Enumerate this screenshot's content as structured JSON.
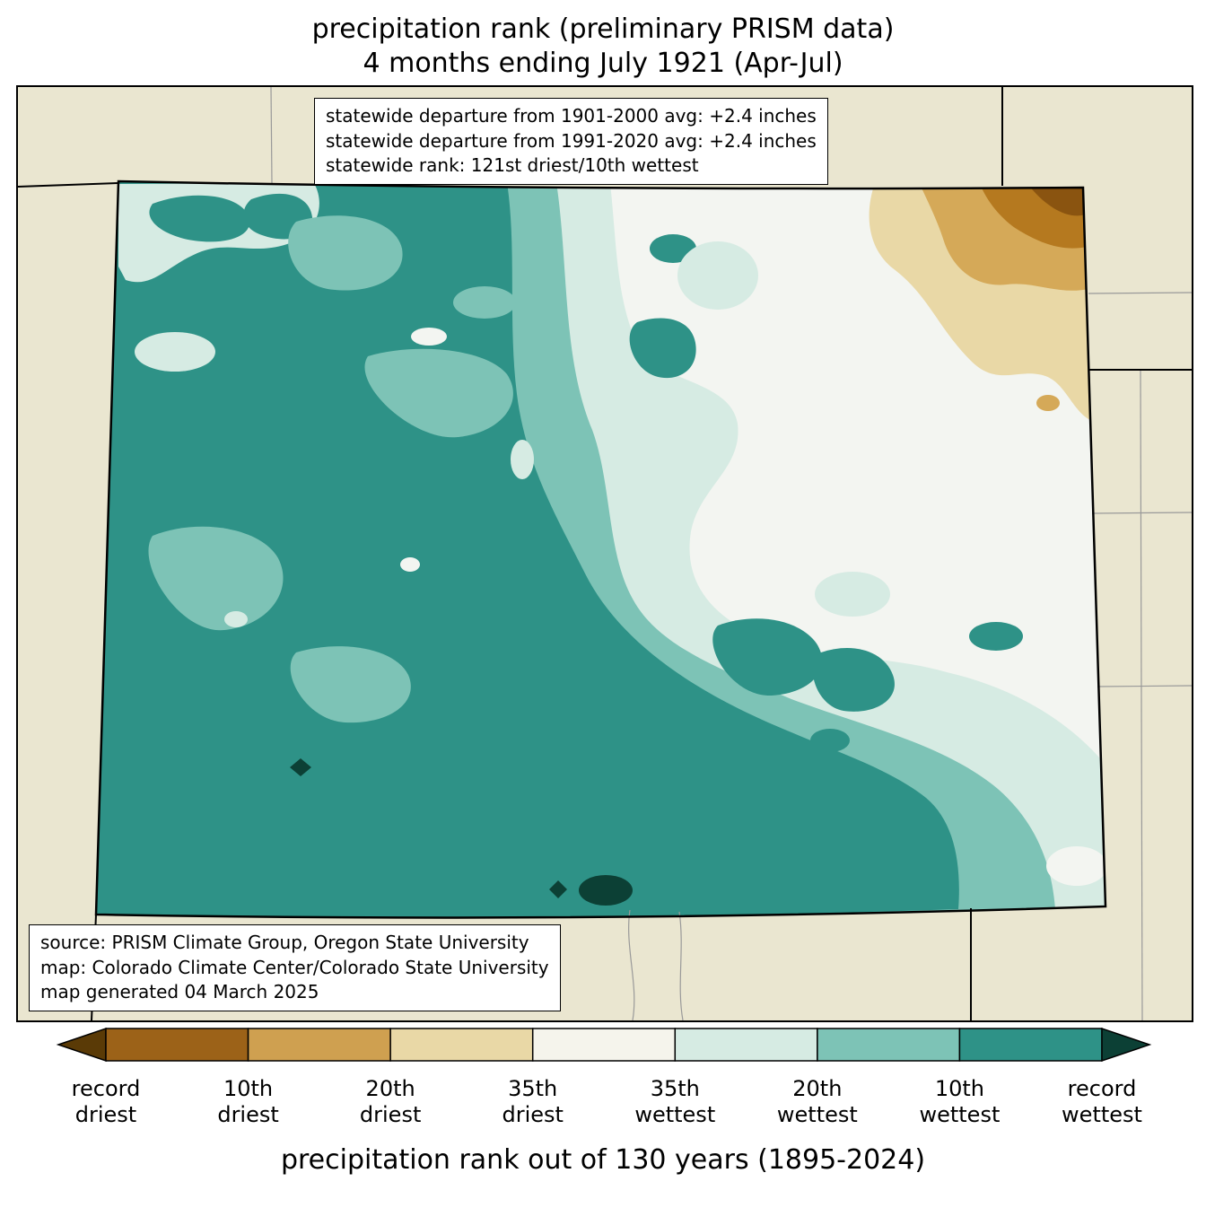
{
  "title": {
    "line1": "precipitation rank (preliminary PRISM data)",
    "line2": "4 months ending July 1921 (Apr-Jul)"
  },
  "stats_box": {
    "line1": "statewide departure from 1901-2000 avg: +2.4 inches",
    "line2": "statewide departure from 1991-2020 avg: +2.4 inches",
    "line3": "statewide rank: 121st driest/10th wettest"
  },
  "source_box": {
    "line1": "source: PRISM Climate Group, Oregon State University",
    "line2": "map: Colorado Climate Center/Colorado State University",
    "line3": "map generated 04 March 2025"
  },
  "legend": {
    "caption": "precipitation rank out of 130 years (1895-2024)",
    "colors": [
      "#5a3a06",
      "#9c6218",
      "#cfa050",
      "#e9d8a6",
      "#f5f4ec",
      "#d6ebe3",
      "#7dc3b6",
      "#2e9287",
      "#0c4035"
    ],
    "labels": [
      {
        "line1": "record",
        "line2": "driest"
      },
      {
        "line1": "10th",
        "line2": "driest"
      },
      {
        "line1": "20th",
        "line2": "driest"
      },
      {
        "line1": "35th",
        "line2": "driest"
      },
      {
        "line1": "35th",
        "line2": "wettest"
      },
      {
        "line1": "20th",
        "line2": "wettest"
      },
      {
        "line1": "10th",
        "line2": "wettest"
      },
      {
        "line1": "record",
        "line2": "wettest"
      }
    ]
  },
  "map": {
    "colors": {
      "land": "#eae6d0",
      "plains": "#f3f5f1",
      "wettest_35": "#d6ebe3",
      "wettest_20": "#7dc3b6",
      "wettest_10": "#2e9287",
      "record_wettest": "#0c4035",
      "driest_35": "#e9d8a6",
      "driest_20": "#d5a958",
      "driest_10": "#b5791f",
      "record_driest": "#8a5410",
      "county_line": "#8f8f8f",
      "state_line": "#000000"
    }
  },
  "chart_data": {
    "type": "choropleth",
    "region": "Colorado",
    "variable": "precipitation rank",
    "period": "4 months ending July 1921 (Apr-Jul)",
    "rank_out_of": "130 years (1895-2024)",
    "statewide_departure_from_1901_2000_avg": "+2.4 inches",
    "statewide_departure_from_1991_2020_avg": "+2.4 inches",
    "statewide_rank": "121st driest/10th wettest",
    "legend_categories": [
      "record driest",
      "10th driest",
      "20th driest",
      "35th driest",
      "35th wettest",
      "20th wettest",
      "10th wettest",
      "record wettest"
    ]
  }
}
